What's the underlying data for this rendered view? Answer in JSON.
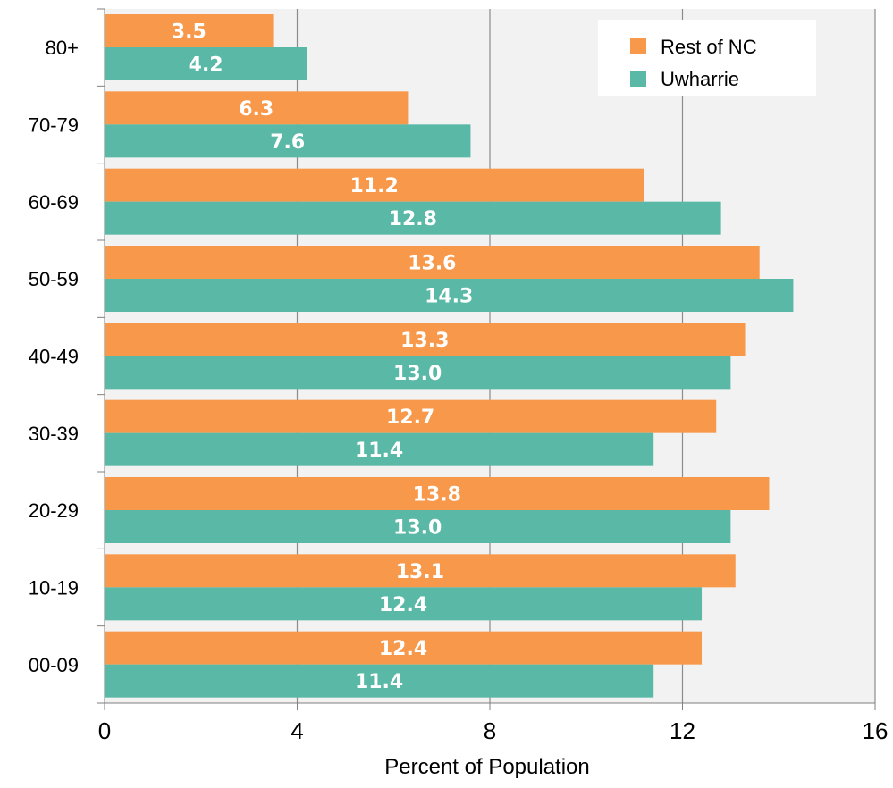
{
  "chart_data": {
    "type": "bar",
    "orientation": "horizontal",
    "title": "",
    "xlabel": "Percent of Population",
    "ylabel": "",
    "xlim": [
      0,
      16
    ],
    "xticks": [
      0,
      4,
      8,
      12,
      16
    ],
    "categories": [
      "80+",
      "70-79",
      "60-69",
      "50-59",
      "40-49",
      "30-39",
      "20-29",
      "10-19",
      "00-09"
    ],
    "series": [
      {
        "name": "Rest of NC",
        "color": "#F7984A",
        "values": [
          3.5,
          6.3,
          11.2,
          13.6,
          13.3,
          12.7,
          13.8,
          13.1,
          12.4
        ]
      },
      {
        "name": "Uwharrie",
        "color": "#5AB8A6",
        "values": [
          4.2,
          7.6,
          12.8,
          14.3,
          13.0,
          11.4,
          13.0,
          12.4,
          11.4
        ]
      }
    ],
    "data_labels": true,
    "grid": "vertical",
    "plot_background": "#F2F2F2",
    "legend_position": "top-right"
  }
}
